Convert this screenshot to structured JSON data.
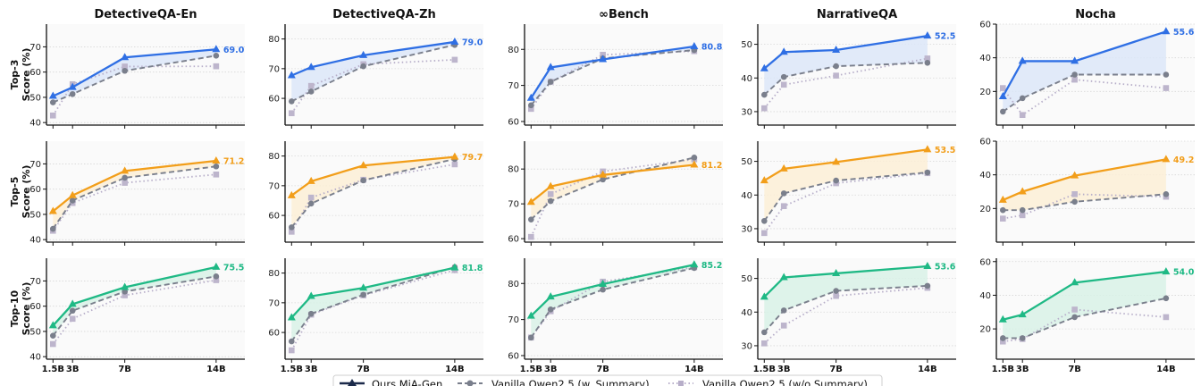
{
  "chart_data": {
    "type": "line",
    "layout": "grid 3 rows x 5 columns",
    "x_categories": [
      "1.5B",
      "3B",
      "7B",
      "14B"
    ],
    "x_values": [
      1.5,
      3,
      7,
      14
    ],
    "columns": [
      "DetectiveQA-En",
      "DetectiveQA-Zh",
      "∞Bench",
      "NarrativeQA",
      "Nocha"
    ],
    "rows": [
      {
        "label": "Top-3",
        "ylabel": "Score (%)",
        "color": "#2f6fe4",
        "fill": "#dce6f8"
      },
      {
        "label": "Top-5",
        "ylabel": "Score (%)",
        "color": "#f29e1a",
        "fill": "#fbeed6"
      },
      {
        "label": "Top-10",
        "ylabel": "Score (%)",
        "color": "#1fb985",
        "fill": "#d8f1e6"
      }
    ],
    "legend": {
      "position": "bottom-center",
      "entries": [
        {
          "name": "Ours MiA-Gen",
          "style": "solid",
          "marker": "triangle",
          "color": "#1c2a4a"
        },
        {
          "name": "Vanilla Qwen2.5 (w. Summary)",
          "style": "dashed",
          "marker": "circle",
          "color": "#7a7f8c"
        },
        {
          "name": "Vanilla Qwen2.5 (w/o Summary)",
          "style": "dotted",
          "marker": "square",
          "color": "#b7aec9"
        }
      ]
    },
    "grid": true,
    "panels": [
      {
        "row": 0,
        "col": 0,
        "ylim": [
          39,
          79
        ],
        "yticks": [
          40,
          50,
          60,
          70
        ],
        "ours": [
          50.5,
          54.0,
          65.8,
          69.0
        ],
        "with_summary": [
          48.0,
          51.3,
          60.5,
          66.5
        ],
        "without_summary": [
          42.8,
          55.2,
          62.2,
          62.3
        ],
        "end_label": "69.0"
      },
      {
        "row": 0,
        "col": 1,
        "ylim": [
          51,
          85
        ],
        "yticks": [
          60,
          70,
          80
        ],
        "ours": [
          67.7,
          70.5,
          74.5,
          79.0
        ],
        "with_summary": [
          59.0,
          62.3,
          70.8,
          78.0
        ],
        "without_summary": [
          55.0,
          64.2,
          71.5,
          73.0
        ],
        "end_label": "79.0"
      },
      {
        "row": 0,
        "col": 2,
        "ylim": [
          59,
          87
        ],
        "yticks": [
          60,
          70,
          80
        ],
        "ours": [
          66.5,
          75.0,
          77.2,
          80.8
        ],
        "with_summary": [
          64.5,
          71.0,
          77.5,
          79.8
        ],
        "without_summary": [
          63.5,
          71.0,
          78.5,
          79.5
        ],
        "end_label": "80.8"
      },
      {
        "row": 0,
        "col": 3,
        "ylim": [
          26,
          56
        ],
        "yticks": [
          30,
          40,
          50
        ],
        "ours": [
          42.8,
          47.7,
          48.3,
          52.5
        ],
        "with_summary": [
          35.0,
          40.3,
          43.5,
          44.5
        ],
        "without_summary": [
          31.0,
          38.0,
          40.7,
          45.8
        ],
        "end_label": "52.5"
      },
      {
        "row": 0,
        "col": 4,
        "ylim": [
          0,
          60
        ],
        "yticks": [
          20,
          40,
          60
        ],
        "ours": [
          17.0,
          38.0,
          38.0,
          55.6
        ],
        "with_summary": [
          8.0,
          16.0,
          30.0,
          30.0
        ],
        "without_summary": [
          22.0,
          6.0,
          27.0,
          22.0
        ],
        "end_label": "55.6"
      },
      {
        "row": 1,
        "col": 0,
        "ylim": [
          39,
          79
        ],
        "yticks": [
          40,
          50,
          60,
          70
        ],
        "ours": [
          51.2,
          57.5,
          67.2,
          71.2
        ],
        "with_summary": [
          44.3,
          55.5,
          64.5,
          69.0
        ],
        "without_summary": [
          43.5,
          54.5,
          62.5,
          65.8
        ],
        "end_label": "71.2"
      },
      {
        "row": 1,
        "col": 1,
        "ylim": [
          51,
          85
        ],
        "yticks": [
          60,
          70,
          80
        ],
        "ours": [
          66.7,
          71.5,
          76.8,
          79.7
        ],
        "with_summary": [
          56.0,
          64.0,
          71.8,
          79.0
        ],
        "without_summary": [
          54.5,
          66.0,
          72.0,
          77.2
        ],
        "end_label": "79.7"
      },
      {
        "row": 1,
        "col": 2,
        "ylim": [
          59,
          88
        ],
        "yticks": [
          60,
          70,
          80
        ],
        "ours": [
          70.5,
          75.0,
          78.3,
          81.2
        ],
        "with_summary": [
          65.5,
          70.8,
          77.0,
          83.3
        ],
        "without_summary": [
          60.5,
          72.8,
          79.3,
          82.8
        ],
        "end_label": "81.2"
      },
      {
        "row": 1,
        "col": 3,
        "ylim": [
          26,
          56
        ],
        "yticks": [
          30,
          40,
          50
        ],
        "ours": [
          44.3,
          47.8,
          49.8,
          53.5
        ],
        "with_summary": [
          32.3,
          40.5,
          44.3,
          46.7
        ],
        "without_summary": [
          28.7,
          36.7,
          43.5,
          46.5
        ],
        "end_label": "53.5"
      },
      {
        "row": 1,
        "col": 4,
        "ylim": [
          0,
          60
        ],
        "yticks": [
          20,
          40,
          60
        ],
        "ours": [
          25.0,
          30.0,
          39.5,
          49.2
        ],
        "with_summary": [
          19.0,
          19.0,
          24.0,
          28.5
        ],
        "without_summary": [
          14.0,
          16.0,
          28.5,
          27.0
        ],
        "end_label": "49.2"
      },
      {
        "row": 2,
        "col": 0,
        "ylim": [
          39,
          79
        ],
        "yticks": [
          40,
          50,
          60,
          70
        ],
        "ours": [
          52.3,
          60.8,
          67.5,
          75.5
        ],
        "with_summary": [
          48.3,
          58.2,
          65.8,
          71.8
        ],
        "without_summary": [
          45.0,
          55.0,
          64.3,
          70.3
        ],
        "end_label": "75.5"
      },
      {
        "row": 2,
        "col": 1,
        "ylim": [
          51,
          85
        ],
        "yticks": [
          60,
          70,
          80
        ],
        "ours": [
          65.0,
          72.2,
          75.0,
          81.8
        ],
        "with_summary": [
          57.0,
          66.3,
          72.7,
          82.0
        ],
        "without_summary": [
          54.0,
          66.0,
          72.5,
          81.0
        ],
        "end_label": "81.8"
      },
      {
        "row": 2,
        "col": 2,
        "ylim": [
          59,
          87
        ],
        "yticks": [
          60,
          70,
          80
        ],
        "ours": [
          71.0,
          76.3,
          79.8,
          85.2
        ],
        "with_summary": [
          65.0,
          72.8,
          78.3,
          84.3
        ],
        "without_summary": [
          65.0,
          72.3,
          80.5,
          84.5
        ],
        "end_label": "85.2"
      },
      {
        "row": 2,
        "col": 3,
        "ylim": [
          26,
          56
        ],
        "yticks": [
          30,
          40,
          50
        ],
        "ours": [
          44.5,
          50.3,
          51.5,
          53.6
        ],
        "with_summary": [
          34.0,
          40.5,
          46.3,
          47.8
        ],
        "without_summary": [
          30.7,
          36.0,
          44.8,
          47.2
        ],
        "end_label": "53.6"
      },
      {
        "row": 2,
        "col": 4,
        "ylim": [
          2,
          62
        ],
        "yticks": [
          20,
          40,
          60
        ],
        "ours": [
          25.5,
          28.5,
          47.5,
          54.0
        ],
        "with_summary": [
          14.5,
          14.5,
          27.0,
          38.2
        ],
        "without_summary": [
          12.5,
          14.0,
          31.5,
          27.0
        ],
        "end_label": "54.0"
      }
    ]
  }
}
